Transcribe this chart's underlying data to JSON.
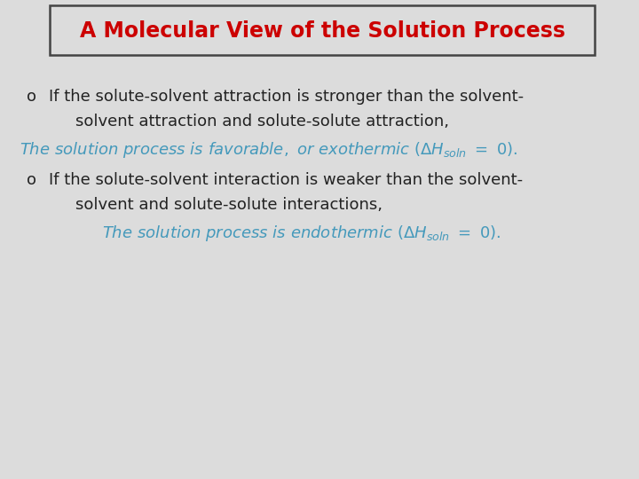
{
  "title": "A Molecular View of the Solution Process",
  "title_color": "#cc0000",
  "background_color": "#dcdcdc",
  "bullet1_line1": "If the solute-solvent attraction is stronger than the solvent-",
  "bullet1_line2": "solvent attraction and solute-solute attraction,",
  "bullet2_line1": "If the solute-solvent interaction is weaker than the solvent-",
  "bullet2_line2": "solvent and solute-solute interactions,",
  "italic1_str": "The solution process is favorable, or exothermic (ΔH$_{soln}$ = 0).",
  "italic2_str": "The solution process is endothermic (ΔH$_{soln}$ = 0).",
  "bullet_color": "#222222",
  "italic_color": "#4499bb",
  "box_edge_color": "#444444",
  "font_size_title": 17,
  "font_size_body": 13,
  "font_size_italic": 13
}
